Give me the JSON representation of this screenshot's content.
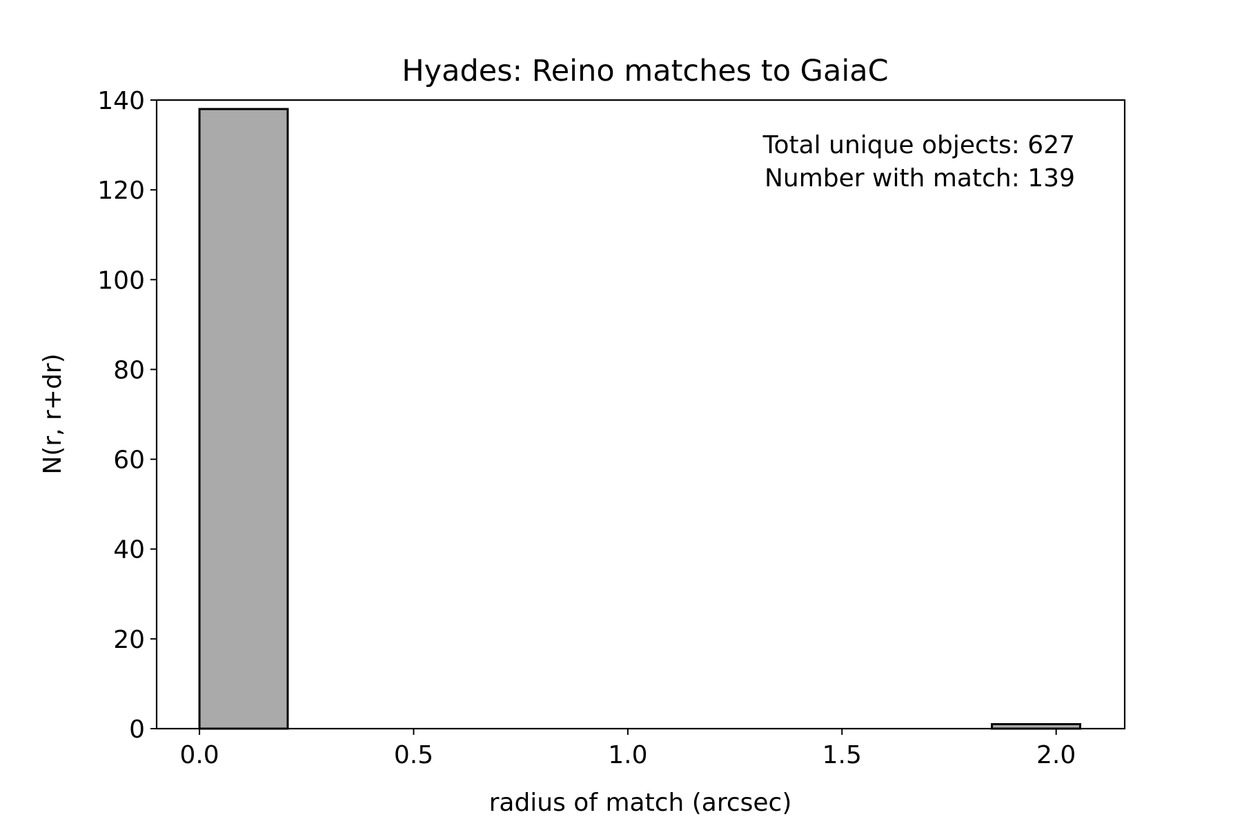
{
  "chart_data": {
    "type": "bar",
    "title": "Hyades: Reino matches to GaiaC",
    "xlabel": "radius of match (arcsec)",
    "ylabel": "N(r, r+dr)",
    "bins": [
      {
        "x0": 0.0,
        "x1": 0.206,
        "count": 138
      },
      {
        "x0": 1.85,
        "x1": 2.056,
        "count": 1
      }
    ],
    "xlim": [
      -0.1,
      2.16
    ],
    "ylim": [
      0,
      140
    ],
    "xticks": [
      0.0,
      0.5,
      1.0,
      1.5,
      2.0
    ],
    "xtick_labels": [
      "0.0",
      "0.5",
      "1.0",
      "1.5",
      "2.0"
    ],
    "yticks": [
      0,
      20,
      40,
      60,
      80,
      100,
      120,
      140
    ],
    "ytick_labels": [
      "0",
      "20",
      "40",
      "60",
      "80",
      "100",
      "120",
      "140"
    ],
    "annotations": [
      "Total unique objects: 627",
      "Number with match: 139"
    ],
    "bar_color": "#aaaaaa",
    "edge_color": "#000000",
    "grid": false,
    "legend": "none"
  }
}
